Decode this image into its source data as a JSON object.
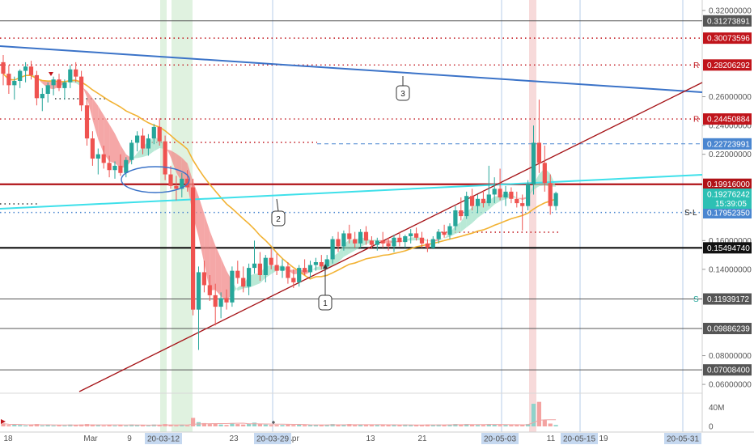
{
  "chart_data": {
    "type": "candlestick",
    "y_axis": {
      "range": [
        0.055,
        0.325
      ],
      "ticks": [
        {
          "value": 0.32,
          "label": "0.32000000"
        },
        {
          "value": 0.26,
          "label": "0.26000000"
        },
        {
          "value": 0.24,
          "label": "0.24000000"
        },
        {
          "value": 0.22,
          "label": "0.22000000"
        },
        {
          "value": 0.16,
          "label": "0.16000000"
        },
        {
          "value": 0.14,
          "label": "0.14000000"
        },
        {
          "value": 0.08,
          "label": "0.08000000"
        },
        {
          "value": 0.06,
          "label": "0.06000000"
        }
      ]
    },
    "volume_axis": {
      "ticks": [
        {
          "value": 40,
          "label": "40M"
        },
        {
          "value": 0,
          "label": "0"
        }
      ]
    },
    "x_axis": {
      "ticks": [
        "18",
        "Mar",
        "9",
        "23",
        "Apr",
        "13",
        "21",
        "11",
        "19"
      ],
      "highlighted": [
        "20-03-12",
        "20-03-29",
        "20-05-03",
        "20-05-15",
        "20-05-31"
      ]
    },
    "horizontal_levels": [
      {
        "value": 0.31273891,
        "label": "0.31273891",
        "style": "solid",
        "color": "#555555",
        "tag": ""
      },
      {
        "value": 0.30073596,
        "label": "0.30073596",
        "style": "dotted",
        "color": "#c0141b",
        "tag": ""
      },
      {
        "value": 0.28206292,
        "label": "0.28206292",
        "style": "dotted",
        "color": "#c0141b",
        "tag": "R"
      },
      {
        "value": 0.24450884,
        "label": "0.24450884",
        "style": "dotted",
        "color": "#c0141b",
        "tag": "R"
      },
      {
        "value": 0.22723991,
        "label": "0.22723991",
        "style": "dashed",
        "color": "#4a86d0",
        "tag": ""
      },
      {
        "value": 0.19916,
        "label": "0.19916000",
        "style": "solid-thick",
        "color": "#b01217",
        "tag": ""
      },
      {
        "value": 0.19276242,
        "label": "0.19276242",
        "style": "none",
        "color": "#2dc0b4",
        "tag": ""
      },
      {
        "value": 0.1795235,
        "label": "0.17952350",
        "style": "dotted",
        "color": "#4a86d0",
        "tag": "S-L"
      },
      {
        "value": 0.1549474,
        "label": "0.15494740",
        "style": "solid-thick",
        "color": "#111111",
        "tag": ""
      },
      {
        "value": 0.11939172,
        "label": "0.11939172",
        "style": "solid",
        "color": "#555555",
        "tag": "S"
      },
      {
        "value": 0.09886239,
        "label": "0.09886239",
        "style": "solid",
        "color": "#555555",
        "tag": ""
      },
      {
        "value": 0.070084,
        "label": "0.07008400",
        "style": "solid",
        "color": "#555555",
        "tag": ""
      }
    ],
    "countdown": "15:39:05",
    "trendline_labels": [
      "1",
      "2",
      "3"
    ],
    "candles": [
      {
        "o": 0.284,
        "h": 0.289,
        "l": 0.268,
        "c": 0.276
      },
      {
        "o": 0.276,
        "h": 0.282,
        "l": 0.262,
        "c": 0.268
      },
      {
        "o": 0.268,
        "h": 0.274,
        "l": 0.258,
        "c": 0.271
      },
      {
        "o": 0.271,
        "h": 0.279,
        "l": 0.266,
        "c": 0.278
      },
      {
        "o": 0.278,
        "h": 0.284,
        "l": 0.27,
        "c": 0.281
      },
      {
        "o": 0.281,
        "h": 0.285,
        "l": 0.272,
        "c": 0.275
      },
      {
        "o": 0.275,
        "h": 0.278,
        "l": 0.254,
        "c": 0.259
      },
      {
        "o": 0.259,
        "h": 0.266,
        "l": 0.25,
        "c": 0.262
      },
      {
        "o": 0.262,
        "h": 0.27,
        "l": 0.256,
        "c": 0.268
      },
      {
        "o": 0.268,
        "h": 0.274,
        "l": 0.261,
        "c": 0.272
      },
      {
        "o": 0.272,
        "h": 0.276,
        "l": 0.264,
        "c": 0.266
      },
      {
        "o": 0.266,
        "h": 0.272,
        "l": 0.258,
        "c": 0.27
      },
      {
        "o": 0.27,
        "h": 0.282,
        "l": 0.266,
        "c": 0.279
      },
      {
        "o": 0.279,
        "h": 0.284,
        "l": 0.27,
        "c": 0.274
      },
      {
        "o": 0.274,
        "h": 0.278,
        "l": 0.25,
        "c": 0.254
      },
      {
        "o": 0.254,
        "h": 0.258,
        "l": 0.226,
        "c": 0.231
      },
      {
        "o": 0.231,
        "h": 0.236,
        "l": 0.212,
        "c": 0.217
      },
      {
        "o": 0.217,
        "h": 0.224,
        "l": 0.206,
        "c": 0.22
      },
      {
        "o": 0.22,
        "h": 0.226,
        "l": 0.21,
        "c": 0.214
      },
      {
        "o": 0.214,
        "h": 0.219,
        "l": 0.204,
        "c": 0.209
      },
      {
        "o": 0.209,
        "h": 0.215,
        "l": 0.203,
        "c": 0.212
      },
      {
        "o": 0.212,
        "h": 0.22,
        "l": 0.205,
        "c": 0.207
      },
      {
        "o": 0.207,
        "h": 0.218,
        "l": 0.204,
        "c": 0.216
      },
      {
        "o": 0.216,
        "h": 0.23,
        "l": 0.213,
        "c": 0.228
      },
      {
        "o": 0.228,
        "h": 0.236,
        "l": 0.222,
        "c": 0.233
      },
      {
        "o": 0.233,
        "h": 0.238,
        "l": 0.22,
        "c": 0.224
      },
      {
        "o": 0.224,
        "h": 0.234,
        "l": 0.219,
        "c": 0.231
      },
      {
        "o": 0.231,
        "h": 0.241,
        "l": 0.227,
        "c": 0.239
      },
      {
        "o": 0.239,
        "h": 0.245,
        "l": 0.226,
        "c": 0.229
      },
      {
        "o": 0.229,
        "h": 0.233,
        "l": 0.202,
        "c": 0.206
      },
      {
        "o": 0.206,
        "h": 0.212,
        "l": 0.196,
        "c": 0.198
      },
      {
        "o": 0.198,
        "h": 0.205,
        "l": 0.188,
        "c": 0.196
      },
      {
        "o": 0.196,
        "h": 0.207,
        "l": 0.19,
        "c": 0.203
      },
      {
        "o": 0.203,
        "h": 0.209,
        "l": 0.194,
        "c": 0.197
      },
      {
        "o": 0.197,
        "h": 0.203,
        "l": 0.108,
        "c": 0.112
      },
      {
        "o": 0.112,
        "h": 0.142,
        "l": 0.084,
        "c": 0.138
      },
      {
        "o": 0.138,
        "h": 0.146,
        "l": 0.124,
        "c": 0.129
      },
      {
        "o": 0.129,
        "h": 0.136,
        "l": 0.118,
        "c": 0.122
      },
      {
        "o": 0.122,
        "h": 0.13,
        "l": 0.101,
        "c": 0.114
      },
      {
        "o": 0.114,
        "h": 0.124,
        "l": 0.106,
        "c": 0.12
      },
      {
        "o": 0.12,
        "h": 0.126,
        "l": 0.112,
        "c": 0.117
      },
      {
        "o": 0.117,
        "h": 0.142,
        "l": 0.114,
        "c": 0.139
      },
      {
        "o": 0.139,
        "h": 0.146,
        "l": 0.13,
        "c": 0.134
      },
      {
        "o": 0.134,
        "h": 0.142,
        "l": 0.124,
        "c": 0.128
      },
      {
        "o": 0.128,
        "h": 0.144,
        "l": 0.122,
        "c": 0.141
      },
      {
        "o": 0.141,
        "h": 0.16,
        "l": 0.137,
        "c": 0.144
      },
      {
        "o": 0.144,
        "h": 0.152,
        "l": 0.132,
        "c": 0.136
      },
      {
        "o": 0.136,
        "h": 0.15,
        "l": 0.131,
        "c": 0.148
      },
      {
        "o": 0.148,
        "h": 0.154,
        "l": 0.14,
        "c": 0.143
      },
      {
        "o": 0.143,
        "h": 0.151,
        "l": 0.136,
        "c": 0.139
      },
      {
        "o": 0.139,
        "h": 0.147,
        "l": 0.134,
        "c": 0.142
      },
      {
        "o": 0.142,
        "h": 0.145,
        "l": 0.13,
        "c": 0.134
      },
      {
        "o": 0.134,
        "h": 0.14,
        "l": 0.127,
        "c": 0.131
      },
      {
        "o": 0.131,
        "h": 0.143,
        "l": 0.128,
        "c": 0.141
      },
      {
        "o": 0.141,
        "h": 0.147,
        "l": 0.136,
        "c": 0.138
      },
      {
        "o": 0.138,
        "h": 0.146,
        "l": 0.134,
        "c": 0.143
      },
      {
        "o": 0.143,
        "h": 0.148,
        "l": 0.139,
        "c": 0.145
      },
      {
        "o": 0.145,
        "h": 0.15,
        "l": 0.14,
        "c": 0.142
      },
      {
        "o": 0.142,
        "h": 0.15,
        "l": 0.14,
        "c": 0.147
      },
      {
        "o": 0.147,
        "h": 0.163,
        "l": 0.144,
        "c": 0.161
      },
      {
        "o": 0.161,
        "h": 0.166,
        "l": 0.152,
        "c": 0.156
      },
      {
        "o": 0.156,
        "h": 0.167,
        "l": 0.153,
        "c": 0.165
      },
      {
        "o": 0.165,
        "h": 0.171,
        "l": 0.158,
        "c": 0.161
      },
      {
        "o": 0.161,
        "h": 0.166,
        "l": 0.155,
        "c": 0.158
      },
      {
        "o": 0.158,
        "h": 0.168,
        "l": 0.155,
        "c": 0.166
      },
      {
        "o": 0.166,
        "h": 0.17,
        "l": 0.157,
        "c": 0.16
      },
      {
        "o": 0.16,
        "h": 0.163,
        "l": 0.154,
        "c": 0.157
      },
      {
        "o": 0.157,
        "h": 0.162,
        "l": 0.153,
        "c": 0.16
      },
      {
        "o": 0.16,
        "h": 0.166,
        "l": 0.155,
        "c": 0.158
      },
      {
        "o": 0.158,
        "h": 0.162,
        "l": 0.153,
        "c": 0.156
      },
      {
        "o": 0.156,
        "h": 0.164,
        "l": 0.152,
        "c": 0.162
      },
      {
        "o": 0.162,
        "h": 0.166,
        "l": 0.156,
        "c": 0.159
      },
      {
        "o": 0.159,
        "h": 0.164,
        "l": 0.155,
        "c": 0.163
      },
      {
        "o": 0.163,
        "h": 0.168,
        "l": 0.158,
        "c": 0.165
      },
      {
        "o": 0.165,
        "h": 0.169,
        "l": 0.16,
        "c": 0.162
      },
      {
        "o": 0.162,
        "h": 0.166,
        "l": 0.155,
        "c": 0.158
      },
      {
        "o": 0.158,
        "h": 0.161,
        "l": 0.152,
        "c": 0.155
      },
      {
        "o": 0.155,
        "h": 0.163,
        "l": 0.154,
        "c": 0.161
      },
      {
        "o": 0.161,
        "h": 0.168,
        "l": 0.158,
        "c": 0.166
      },
      {
        "o": 0.166,
        "h": 0.171,
        "l": 0.162,
        "c": 0.164
      },
      {
        "o": 0.164,
        "h": 0.172,
        "l": 0.161,
        "c": 0.17
      },
      {
        "o": 0.17,
        "h": 0.184,
        "l": 0.167,
        "c": 0.181
      },
      {
        "o": 0.181,
        "h": 0.19,
        "l": 0.174,
        "c": 0.177
      },
      {
        "o": 0.177,
        "h": 0.194,
        "l": 0.175,
        "c": 0.191
      },
      {
        "o": 0.191,
        "h": 0.196,
        "l": 0.181,
        "c": 0.184
      },
      {
        "o": 0.184,
        "h": 0.192,
        "l": 0.179,
        "c": 0.189
      },
      {
        "o": 0.189,
        "h": 0.195,
        "l": 0.183,
        "c": 0.186
      },
      {
        "o": 0.186,
        "h": 0.212,
        "l": 0.184,
        "c": 0.192
      },
      {
        "o": 0.192,
        "h": 0.204,
        "l": 0.186,
        "c": 0.196
      },
      {
        "o": 0.196,
        "h": 0.21,
        "l": 0.188,
        "c": 0.19
      },
      {
        "o": 0.19,
        "h": 0.198,
        "l": 0.184,
        "c": 0.194
      },
      {
        "o": 0.194,
        "h": 0.197,
        "l": 0.186,
        "c": 0.189
      },
      {
        "o": 0.189,
        "h": 0.194,
        "l": 0.183,
        "c": 0.186
      },
      {
        "o": 0.186,
        "h": 0.192,
        "l": 0.167,
        "c": 0.184
      },
      {
        "o": 0.184,
        "h": 0.202,
        "l": 0.181,
        "c": 0.199
      },
      {
        "o": 0.199,
        "h": 0.24,
        "l": 0.192,
        "c": 0.228
      },
      {
        "o": 0.228,
        "h": 0.258,
        "l": 0.207,
        "c": 0.214
      },
      {
        "o": 0.214,
        "h": 0.226,
        "l": 0.194,
        "c": 0.2
      },
      {
        "o": 0.2,
        "h": 0.206,
        "l": 0.178,
        "c": 0.184
      },
      {
        "o": 0.184,
        "h": 0.194,
        "l": 0.181,
        "c": 0.193
      }
    ],
    "volume": [
      6,
      3,
      4,
      3,
      2,
      3,
      5,
      2,
      3,
      2,
      3,
      2,
      4,
      3,
      4,
      5,
      4,
      3,
      2,
      3,
      2,
      3,
      2,
      4,
      3,
      3,
      2,
      4,
      3,
      5,
      3,
      2,
      3,
      2,
      18,
      9,
      7,
      5,
      6,
      4,
      3,
      7,
      5,
      4,
      6,
      8,
      5,
      4,
      3,
      3,
      3,
      4,
      3,
      4,
      3,
      3,
      3,
      3,
      3,
      5,
      4,
      4,
      5,
      3,
      4,
      3,
      3,
      3,
      3,
      3,
      3,
      3,
      4,
      3,
      3,
      3,
      4,
      3,
      4,
      3,
      4,
      5,
      4,
      5,
      4,
      3,
      3,
      5,
      4,
      3,
      3,
      3,
      3,
      4,
      5,
      48,
      52,
      14,
      6,
      3
    ]
  }
}
